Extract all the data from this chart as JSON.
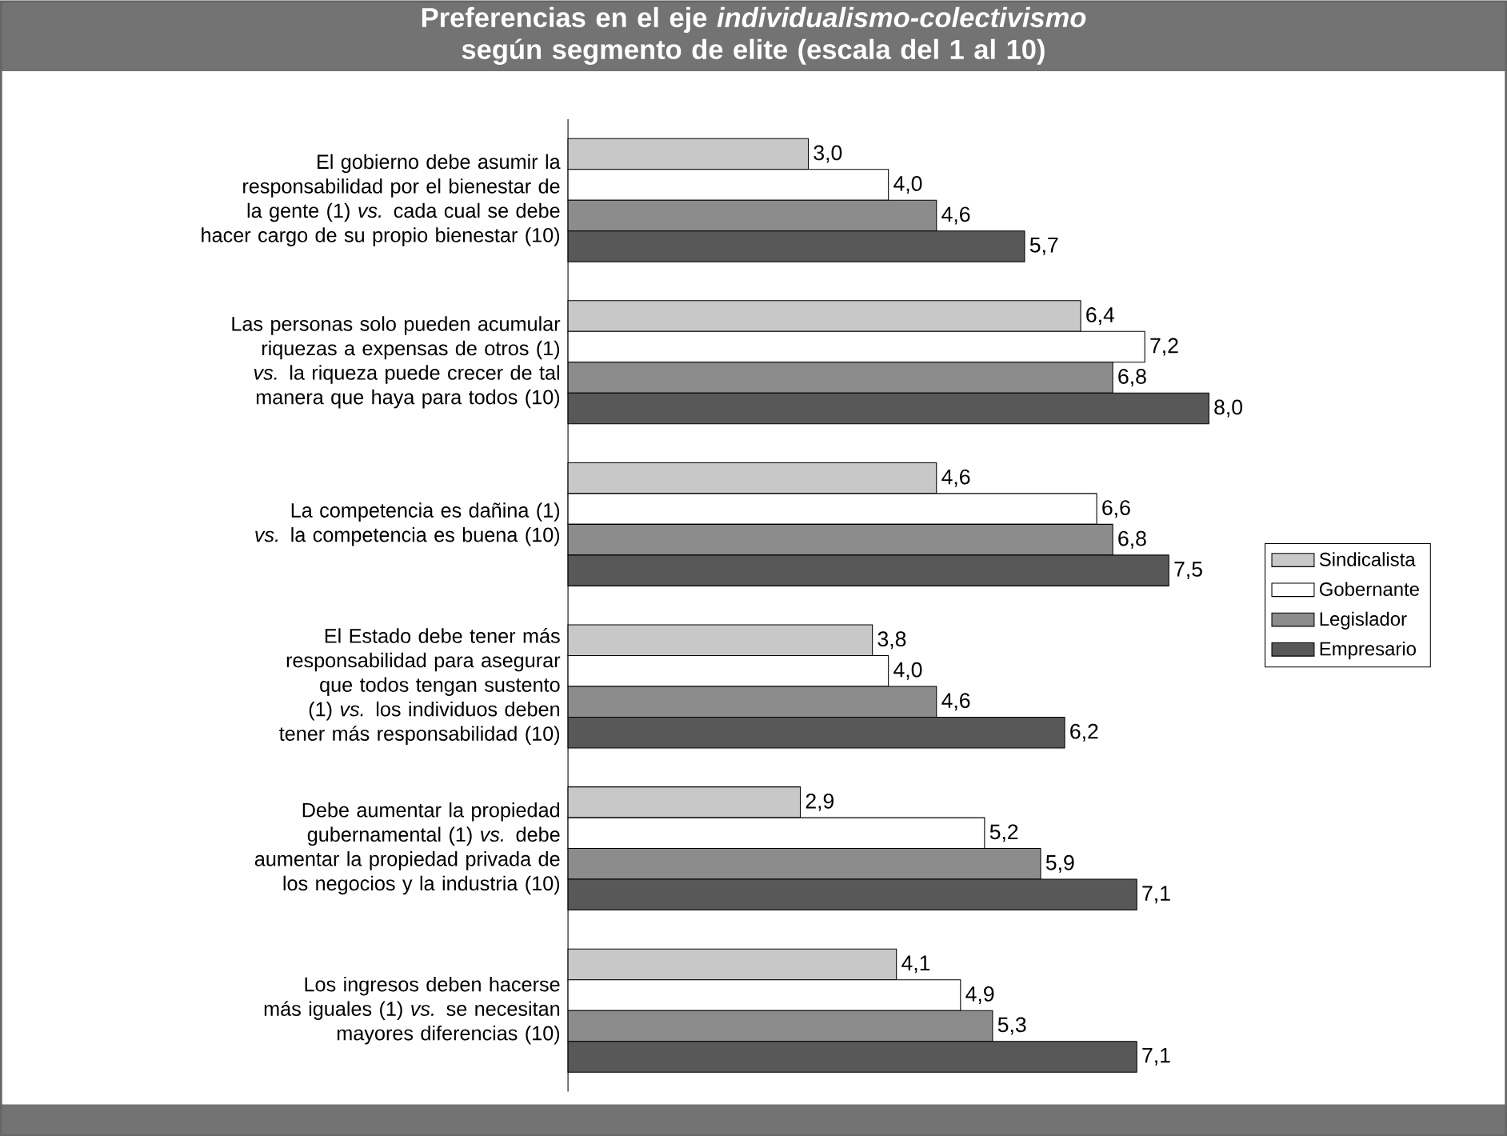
{
  "chart_data": {
    "type": "bar",
    "orientation": "horizontal",
    "title": "Preferencias en el eje *individualismo-colectivismo* según segmento de elite (escala del 1 al 10)",
    "categories": [
      "El gobierno debe asumir la responsabilidad por el bienestar de la gente (1) *vs.* cada cual se debe hacer cargo de su propio bienestar (10)",
      "Las personas solo pueden acumular riquezas a expensas de otros (1) *vs.* la riqueza puede crecer de tal manera que haya para todos (10)",
      "La competencia es dañina (1) *vs.* la competencia es buena (10)",
      "El Estado debe tener más responsabilidad para asegurar que todos tengan sustento (1) *vs.* los individuos deben tener más responsabilidad (10)",
      "Debe aumentar la propiedad gubernamental (1) *vs.* debe aumentar la propiedad privada de los negocios y la industria (10)",
      "Los ingresos deben hacerse más iguales (1) *vs.* se necesitan mayores diferencias (10)"
    ],
    "series": [
      {
        "name": "Sindicalista",
        "color": "#c8c8c8",
        "values": [
          3.0,
          6.4,
          4.6,
          3.8,
          2.9,
          4.1
        ],
        "value_labels": [
          "3,0",
          "6,4",
          "4,6",
          "3,8",
          "2,9",
          "4,1"
        ]
      },
      {
        "name": "Gobernante",
        "color": "#ffffff",
        "values": [
          4.0,
          7.2,
          6.6,
          4.0,
          5.2,
          4.9
        ],
        "value_labels": [
          "4,0",
          "7,2",
          "6,6",
          "4,0",
          "5,2",
          "4,9"
        ]
      },
      {
        "name": "Legislador",
        "color": "#8c8c8c",
        "values": [
          4.6,
          6.8,
          6.8,
          4.6,
          5.9,
          5.3
        ],
        "value_labels": [
          "4,6",
          "6,8",
          "6,8",
          "4,6",
          "5,9",
          "5,3"
        ]
      },
      {
        "name": "Empresario",
        "color": "#585858",
        "values": [
          5.7,
          8.0,
          7.5,
          6.2,
          7.1,
          7.1
        ],
        "value_labels": [
          "5,7",
          "8,0",
          "7,5",
          "6,2",
          "7,1",
          "7,1"
        ]
      }
    ],
    "legend": "right"
  }
}
